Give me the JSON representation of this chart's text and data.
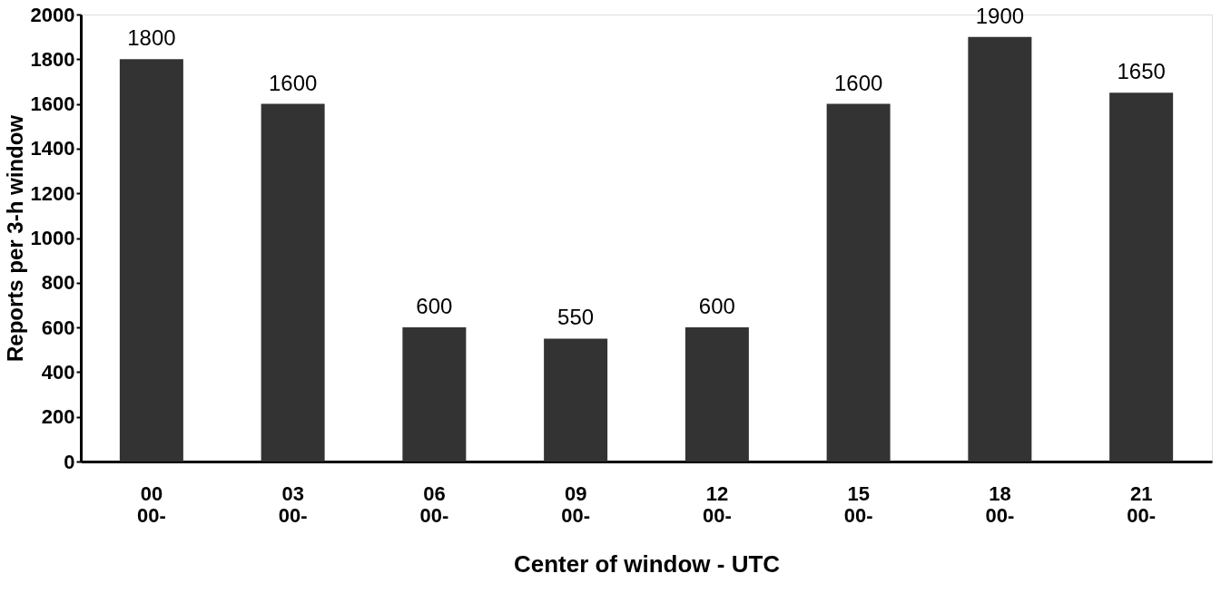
{
  "chart_data": {
    "type": "bar",
    "xlabel": "Center of window - UTC",
    "ylabel": "Reports per 3-h window",
    "categories": [
      "00\n00-",
      "03\n00-",
      "06\n00-",
      "09\n00-",
      "12\n00-",
      "15\n00-",
      "18\n00-",
      "21\n00-"
    ],
    "values": [
      1800,
      1600,
      600,
      550,
      600,
      1600,
      1900,
      1650
    ],
    "color": "#333333",
    "ylim": [
      0,
      2000
    ],
    "yticks": [
      0,
      200,
      400,
      600,
      800,
      1000,
      1200,
      1400,
      1600,
      1800,
      2000
    ],
    "grid": false,
    "data_labels": true
  }
}
